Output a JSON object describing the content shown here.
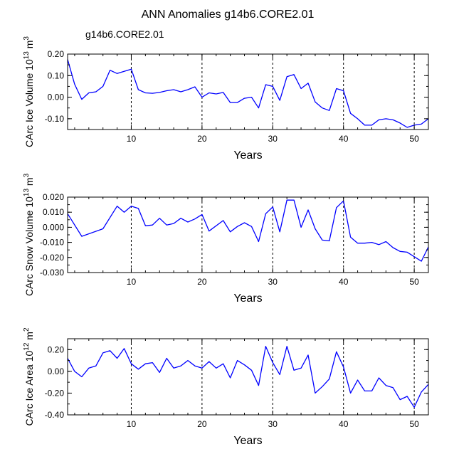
{
  "figure": {
    "title": "ANN Anomalies g14b6.CORE2.01",
    "legend_label": "g14b6.CORE2.01",
    "line_color": "#0000ff"
  },
  "chart_data": [
    {
      "type": "line",
      "name": "ice-volume",
      "ylabel": "CArc Ice Volume 10",
      "ylabel_exp": "13",
      "ylabel_unit": " m",
      "ylabel_unit_exp": "3",
      "xlabel": "Years",
      "xlim": [
        1,
        52
      ],
      "ylim": [
        -0.15,
        0.2
      ],
      "xticks": [
        10,
        20,
        30,
        40,
        50
      ],
      "yticks": [
        -0.1,
        0.0,
        0.1,
        0.2
      ],
      "ytick_labels": [
        "-0.10",
        "0.00",
        "0.10",
        "0.20"
      ],
      "minor_ystep": 0.05,
      "dashed_x": [
        10,
        20,
        30,
        40,
        50
      ],
      "x": [
        1,
        2,
        3,
        4,
        5,
        6,
        7,
        8,
        9,
        10,
        11,
        12,
        13,
        14,
        15,
        16,
        17,
        18,
        19,
        20,
        21,
        22,
        23,
        24,
        25,
        26,
        27,
        28,
        29,
        30,
        31,
        32,
        33,
        34,
        35,
        36,
        37,
        38,
        39,
        40,
        41,
        42,
        43,
        44,
        45,
        46,
        47,
        48,
        49,
        50,
        51,
        52
      ],
      "values": [
        0.175,
        0.06,
        -0.01,
        0.02,
        0.025,
        0.05,
        0.125,
        0.11,
        0.12,
        0.13,
        0.035,
        0.02,
        0.018,
        0.022,
        0.03,
        0.035,
        0.025,
        0.035,
        0.048,
        0.0,
        0.02,
        0.015,
        0.022,
        -0.025,
        -0.025,
        -0.005,
        0.0,
        -0.05,
        0.058,
        0.05,
        -0.015,
        0.095,
        0.105,
        0.04,
        0.065,
        -0.022,
        -0.05,
        -0.062,
        0.04,
        0.03,
        -0.075,
        -0.1,
        -0.13,
        -0.13,
        -0.105,
        -0.1,
        -0.105,
        -0.12,
        -0.14,
        -0.13,
        -0.125,
        -0.1
      ]
    },
    {
      "type": "line",
      "name": "snow-volume",
      "ylabel": "CArc Snow Volume 10",
      "ylabel_exp": "13",
      "ylabel_unit": " m",
      "ylabel_unit_exp": "3",
      "xlabel": "Years",
      "xlim": [
        1,
        52
      ],
      "ylim": [
        -0.03,
        0.02
      ],
      "xticks": [
        10,
        20,
        30,
        40,
        50
      ],
      "yticks": [
        -0.03,
        -0.02,
        -0.01,
        0.0,
        0.01,
        0.02
      ],
      "ytick_labels": [
        "-0.030",
        "-0.020",
        "-0.010",
        "0.000",
        "0.010",
        "0.020"
      ],
      "minor_ystep": 0.005,
      "dashed_x": [
        10,
        20,
        30,
        40,
        50
      ],
      "x": [
        1,
        3,
        6,
        8,
        9,
        10,
        11,
        12,
        13,
        14,
        15,
        16,
        17,
        18,
        19,
        20,
        21,
        23,
        24,
        25,
        26,
        27,
        28,
        29,
        30,
        31,
        32,
        33,
        34,
        35,
        36,
        37,
        38,
        39,
        40,
        41,
        42,
        43,
        44,
        45,
        46,
        47,
        48,
        49,
        50,
        51,
        52
      ],
      "values": [
        0.009,
        -0.006,
        -0.001,
        0.014,
        0.01,
        0.014,
        0.0125,
        0.001,
        0.0015,
        0.006,
        0.0015,
        0.0025,
        0.006,
        0.0035,
        0.0055,
        0.0085,
        -0.0025,
        0.0045,
        -0.003,
        0.0005,
        0.003,
        0.0005,
        -0.0095,
        0.009,
        0.0135,
        -0.003,
        0.018,
        0.018,
        0.0,
        0.0115,
        -0.001,
        -0.0085,
        -0.009,
        0.013,
        0.0175,
        -0.0065,
        -0.0105,
        -0.0105,
        -0.01,
        -0.0115,
        -0.0095,
        -0.0135,
        -0.016,
        -0.0165,
        -0.0195,
        -0.0225,
        -0.013
      ]
    },
    {
      "type": "line",
      "name": "ice-area",
      "ylabel": "CArc Ice Area 10",
      "ylabel_exp": "12",
      "ylabel_unit": " m",
      "ylabel_unit_exp": "2",
      "xlabel": "Years",
      "xlim": [
        1,
        52
      ],
      "ylim": [
        -0.4,
        0.3
      ],
      "xticks": [
        10,
        20,
        30,
        40,
        50
      ],
      "yticks": [
        -0.4,
        -0.2,
        0.0,
        0.2
      ],
      "ytick_labels": [
        "-0.40",
        "-0.20",
        "0.00",
        "0.20"
      ],
      "minor_ystep": 0.1,
      "dashed_x": [
        10,
        20,
        30,
        40,
        50
      ],
      "x": [
        1,
        2,
        3,
        4,
        5,
        6,
        7,
        8,
        9,
        10,
        11,
        12,
        13,
        14,
        15,
        16,
        17,
        18,
        19,
        20,
        21,
        22,
        23,
        24,
        25,
        26,
        27,
        28,
        29,
        30,
        31,
        32,
        33,
        34,
        35,
        36,
        37,
        38,
        39,
        40,
        41,
        42,
        43,
        44,
        45,
        46,
        47,
        48,
        49,
        50,
        51,
        52
      ],
      "values": [
        0.12,
        0.0,
        -0.05,
        0.03,
        0.05,
        0.17,
        0.19,
        0.12,
        0.21,
        0.07,
        0.02,
        0.07,
        0.08,
        -0.01,
        0.12,
        0.03,
        0.05,
        0.1,
        0.05,
        0.03,
        0.09,
        0.03,
        0.07,
        -0.06,
        0.1,
        0.06,
        0.01,
        -0.13,
        0.23,
        0.08,
        -0.03,
        0.23,
        0.01,
        0.03,
        0.15,
        -0.2,
        -0.14,
        -0.07,
        0.18,
        0.04,
        -0.2,
        -0.08,
        -0.18,
        -0.18,
        -0.06,
        -0.13,
        -0.15,
        -0.26,
        -0.23,
        -0.33,
        -0.19,
        -0.12
      ]
    }
  ]
}
